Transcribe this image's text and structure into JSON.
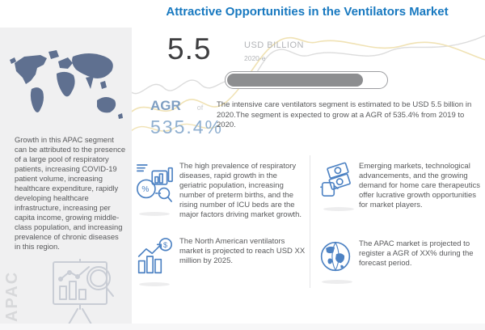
{
  "header": {
    "title": "Attractive Opportunities in the Ventilators Market"
  },
  "sidebar": {
    "region_label": "APAC",
    "description": "Growth in this APAC segment can be attributed to the presence of a large pool of respiratory patients, increasing COVID-19 patient volume, increasing healthcare expenditure, rapidly developing healthcare infrastructure, increasing per capita income, growing middle-class population, and increasing prevalence of chronic diseases in this region.",
    "map_icon": "world-map-icon",
    "easel_icon": "presentation-chart-magnifier-icon"
  },
  "highlight": {
    "value": "5.5",
    "unit": "USD BILLION",
    "year": "2020-e",
    "progress_percent": 84,
    "metric_label": "AGR",
    "metric_connector": "of",
    "metric_value": "535.4%",
    "summary": "The intensive care ventilators segment is estimated to be USD 5.5 billion in 2020.The segment is expected to grow at a AGR of 535.4% from 2019 to 2020."
  },
  "insights": [
    {
      "icon": "analytics-percent-magnifier-icon",
      "text": "The high prevalence of respiratory diseases, rapid growth in the geriatric population, increasing number of preterm births, and the rising number of ICU beds are the major factors driving market growth."
    },
    {
      "icon": "cash-in-hand-icon",
      "text": "Emerging markets, technological advancements, and the growing demand for home care therapeutics offer lucrative growth opportunities for market players."
    },
    {
      "icon": "growth-bar-chart-dollar-icon",
      "text": "The North American ventilators market is projected to reach USD XX million by 2025."
    },
    {
      "icon": "globe-icon",
      "text": "The APAC market is projected to register  a AGR of XX% during the forecast period."
    }
  ],
  "colors": {
    "title_blue": "#1879c0",
    "sidebar_bg": "#f0f0f1",
    "map_slate": "#5f7090",
    "body_text": "#58595b",
    "muted_gray": "#b2b4b7",
    "steel_blue": "#7e9ec2",
    "steel_blue_light": "#8fafd0",
    "progress_fill": "#8d8e90",
    "icon_blue": "#4d82c3",
    "icon_gray": "#c9cdd5",
    "wave_yellow": "#f0e2b4",
    "wave_gray": "#dcdcdc"
  }
}
